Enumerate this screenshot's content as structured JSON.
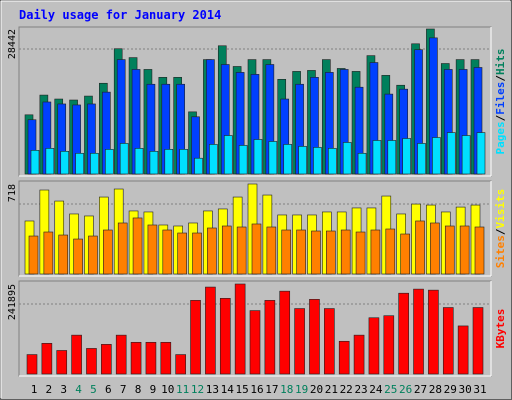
{
  "chart_data": {
    "type": "bar",
    "title": "Daily usage for January 2014",
    "categories": [
      "1",
      "2",
      "3",
      "4",
      "5",
      "6",
      "7",
      "8",
      "9",
      "10",
      "11",
      "12",
      "13",
      "14",
      "15",
      "16",
      "17",
      "18",
      "19",
      "20",
      "21",
      "22",
      "23",
      "24",
      "25",
      "26",
      "27",
      "28",
      "29",
      "30",
      "31"
    ],
    "label_colors": [
      "#000000",
      "#000000",
      "#000000",
      "#00805c",
      "#00805c",
      "#000000",
      "#000000",
      "#000000",
      "#000000",
      "#000000",
      "#00805c",
      "#00805c",
      "#000000",
      "#000000",
      "#000000",
      "#000000",
      "#000000",
      "#00805c",
      "#00805c",
      "#000000",
      "#000000",
      "#000000",
      "#000000",
      "#000000",
      "#00805c",
      "#00805c",
      "#000000",
      "#000000",
      "#000000",
      "#000000",
      "#000000"
    ],
    "legend_separator": "/",
    "grid": true,
    "panels": [
      {
        "ylim": [
          0,
          28442
        ],
        "yticks": [
          28442
        ],
        "series": [
          {
            "name": "Hits",
            "color": "#00805c",
            "values": [
              11609,
              15479,
              14705,
              14511,
              15285,
              17800,
              24572,
              22831,
              20509,
              18961,
              18961,
              12189,
              22444,
              25153,
              21090,
              22444,
              22444,
              18574,
              20122,
              20316,
              22444,
              20703,
              20122,
              23218,
              19348,
              17413,
              25540,
              28442,
              21670,
              22444,
              22444
            ]
          },
          {
            "name": "Files",
            "color": "#0040ff",
            "values": [
              10642,
              14125,
              13738,
              13544,
              13738,
              16059,
              22444,
              20509,
              17607,
              17607,
              17607,
              11222,
              22444,
              21477,
              19929,
              19542,
              21477,
              14705,
              17607,
              18961,
              19929,
              20509,
              17026,
              21864,
              15672,
              16640,
              24379,
              26701,
              20509,
              20509,
              20896
            ]
          },
          {
            "name": "Pages",
            "color": "#00e0ff",
            "values": [
              4644,
              5031,
              4450,
              4063,
              4063,
              4837,
              5998,
              5031,
              4450,
              4837,
              4837,
              3096,
              5805,
              7546,
              5611,
              6772,
              6385,
              5805,
              5418,
              5224,
              5031,
              6192,
              4063,
              6579,
              6579,
              6966,
              5998,
              7159,
              8126,
              7546,
              8126
            ]
          }
        ]
      },
      {
        "ylim": [
          0,
          718
        ],
        "yticks": [
          718
        ],
        "series": [
          {
            "name": "Visits",
            "color": "#ffff00",
            "values": [
              423,
              670,
              582,
              479,
              463,
              614,
              678,
              503,
              495,
              391,
              383,
              407,
              503,
              519,
              614,
              718,
              630,
              471,
              471,
              471,
              495,
              495,
              527,
              527,
              622,
              479,
              558,
              550,
              495,
              534,
              550
            ]
          },
          {
            "name": "Sites",
            "color": "#ff8000",
            "values": [
              303,
              335,
              311,
              279,
              303,
              351,
              407,
              447,
              391,
              351,
              327,
              327,
              367,
              383,
              375,
              399,
              375,
              351,
              351,
              343,
              343,
              351,
              335,
              351,
              359,
              319,
              423,
              407,
              383,
              383,
              375
            ]
          }
        ]
      },
      {
        "ylim": [
          0,
          241895
        ],
        "yticks": [
          241895
        ],
        "series": [
          {
            "name": "KBytes",
            "color": "#ff0000",
            "values": [
              52227,
              82464,
              63222,
              104454,
              68720,
              79715,
              104454,
              85213,
              85213,
              85213,
              52227,
              197914,
              233648,
              203411,
              241895,
              170426,
              197914,
              222653,
              175923,
              200662,
              175923,
              87962,
              104454,
              151184,
              156682,
              217155,
              228150,
              225402,
              178672,
              129194,
              178672
            ]
          }
        ]
      }
    ]
  }
}
